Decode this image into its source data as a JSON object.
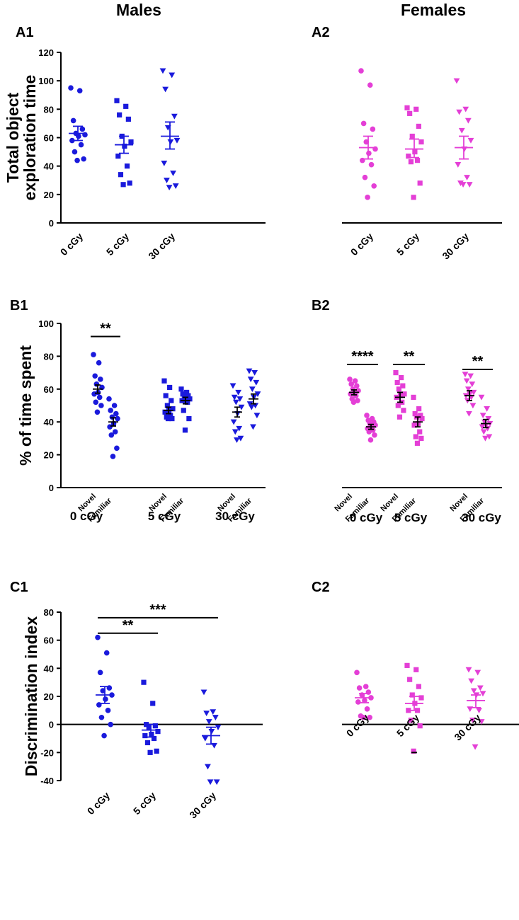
{
  "figure": {
    "col_males": "Males",
    "col_females": "Females",
    "colors": {
      "male": "#1a1adc",
      "female": "#e43fd6",
      "axis": "#000000",
      "black": "#000000"
    }
  },
  "chart_data": [
    {
      "id": "A1",
      "panel_label": "A1",
      "type": "scatter",
      "ylabel_line1": "Total object",
      "ylabel_line2": "exploration time",
      "ylim": [
        0,
        120
      ],
      "yticks": [
        "0",
        "20",
        "40",
        "60",
        "80",
        "100",
        "120"
      ],
      "categories": [
        "0 cGy",
        "5 cGy",
        "30 cGy"
      ],
      "groups": [
        {
          "category": "0 cGy",
          "marker": "circle",
          "mean": 63,
          "sem_low": 58,
          "sem_high": 68,
          "points": [
            95,
            93,
            72,
            66,
            63,
            62,
            61,
            58,
            55,
            50,
            45,
            44
          ]
        },
        {
          "category": "5 cGy",
          "marker": "square",
          "mean": 55,
          "sem_low": 49,
          "sem_high": 61,
          "points": [
            86,
            82,
            76,
            73,
            61,
            57,
            54,
            47,
            40,
            34,
            28,
            27
          ]
        },
        {
          "category": "30 cGy",
          "marker": "triangle-down",
          "mean": 61,
          "sem_low": 52,
          "sem_high": 71,
          "points": [
            107,
            104,
            94,
            75,
            67,
            58,
            57,
            42,
            35,
            30,
            26,
            25
          ]
        }
      ]
    },
    {
      "id": "A2",
      "panel_label": "A2",
      "type": "scatter",
      "ylim": [
        0,
        120
      ],
      "categories": [
        "0 cGy",
        "5 cGy",
        "30 cGy"
      ],
      "groups": [
        {
          "category": "0 cGy",
          "marker": "circle",
          "mean": 53,
          "sem_low": 45,
          "sem_high": 61,
          "points": [
            107,
            97,
            70,
            66,
            57,
            52,
            49,
            44,
            41,
            32,
            26,
            18
          ]
        },
        {
          "category": "5 cGy",
          "marker": "square",
          "mean": 52,
          "sem_low": 46,
          "sem_high": 59,
          "points": [
            81,
            80,
            77,
            68,
            61,
            57,
            50,
            47,
            44,
            43,
            28,
            18
          ]
        },
        {
          "category": "30 cGy",
          "marker": "triangle-down",
          "mean": 53,
          "sem_low": 45,
          "sem_high": 61,
          "points": [
            100,
            80,
            78,
            72,
            65,
            58,
            52,
            41,
            32,
            28,
            27,
            27
          ]
        }
      ]
    },
    {
      "id": "B1",
      "panel_label": "B1",
      "type": "scatter",
      "ylabel": "% of time spent",
      "ylim": [
        0,
        100
      ],
      "yticks": [
        "0",
        "20",
        "40",
        "60",
        "80",
        "100"
      ],
      "sublabels": [
        "Novel",
        "Familiar"
      ],
      "categories": [
        "0 cGy",
        "5 cGy",
        "30 cGy"
      ],
      "groups": [
        {
          "category": "0 cGy",
          "sub": "Novel",
          "marker": "circle",
          "mean": 60,
          "sem_low": 57.5,
          "sem_high": 62.5,
          "points": [
            81,
            76,
            68,
            66,
            63,
            61,
            58,
            57,
            55,
            52,
            50,
            46
          ]
        },
        {
          "category": "0 cGy",
          "sub": "Familiar",
          "marker": "circle",
          "mean": 40,
          "sem_low": 37.5,
          "sem_high": 42.5,
          "points": [
            54,
            50,
            47,
            45,
            43,
            42,
            39,
            37,
            34,
            32,
            24,
            19
          ]
        },
        {
          "category": "5 cGy",
          "sub": "Novel",
          "marker": "square",
          "mean": 47,
          "sem_low": 45,
          "sem_high": 49,
          "points": [
            65,
            61,
            56,
            53,
            50,
            48,
            47,
            46,
            44,
            43,
            42,
            42
          ]
        },
        {
          "category": "5 cGy",
          "sub": "Familiar",
          "marker": "square",
          "mean": 53,
          "sem_low": 51,
          "sem_high": 55,
          "points": [
            60,
            58,
            57,
            56,
            55,
            54,
            53,
            53,
            52,
            47,
            42,
            35
          ]
        },
        {
          "category": "30 cGy",
          "sub": "Novel",
          "marker": "triangle-down",
          "mean": 46,
          "sem_low": 43,
          "sem_high": 49,
          "points": [
            62,
            58,
            55,
            54,
            52,
            49,
            45,
            40,
            36,
            34,
            30,
            29
          ]
        },
        {
          "category": "30 cGy",
          "sub": "Familiar",
          "marker": "triangle-down",
          "mean": 54,
          "sem_low": 51,
          "sem_high": 57,
          "points": [
            71,
            70,
            66,
            64,
            60,
            57,
            55,
            51,
            50,
            49,
            44,
            37
          ]
        }
      ],
      "significance": [
        {
          "label": "**",
          "from": 0,
          "to": 1,
          "y": 92
        }
      ]
    },
    {
      "id": "B2",
      "panel_label": "B2",
      "type": "scatter",
      "ylim": [
        0,
        100
      ],
      "sublabels": [
        "Novel",
        "Familiar"
      ],
      "categories": [
        "0 cGy",
        "5 cGy",
        "30 cGy"
      ],
      "groups": [
        {
          "category": "0 cGy",
          "sub": "Novel",
          "marker": "circle",
          "mean": 58,
          "sem_low": 56.5,
          "sem_high": 59.5,
          "points": [
            66,
            65,
            63,
            62,
            60,
            59,
            58,
            57,
            56,
            54,
            53,
            52
          ]
        },
        {
          "category": "0 cGy",
          "sub": "Familiar",
          "marker": "circle",
          "mean": 37,
          "sem_low": 35.5,
          "sem_high": 38.5,
          "points": [
            44,
            42,
            41,
            40,
            39,
            38,
            37,
            36,
            35,
            34,
            32,
            29
          ]
        },
        {
          "category": "5 cGy",
          "sub": "Novel",
          "marker": "square",
          "mean": 55,
          "sem_low": 52,
          "sem_high": 58,
          "points": [
            70,
            67,
            64,
            62,
            60,
            57,
            56,
            55,
            52,
            50,
            47,
            43
          ]
        },
        {
          "category": "5 cGy",
          "sub": "Familiar",
          "marker": "square",
          "mean": 40,
          "sem_low": 37,
          "sem_high": 43,
          "points": [
            55,
            48,
            45,
            44,
            43,
            42,
            39,
            38,
            34,
            31,
            30,
            27
          ]
        },
        {
          "category": "30 cGy",
          "sub": "Novel",
          "marker": "triangle-down",
          "mean": 56,
          "sem_low": 53,
          "sem_high": 59,
          "points": [
            69,
            68,
            65,
            63,
            60,
            58,
            57,
            56,
            55,
            53,
            50,
            45
          ]
        },
        {
          "category": "30 cGy",
          "sub": "Familiar",
          "marker": "triangle-down",
          "mean": 39,
          "sem_low": 36.5,
          "sem_high": 41.5,
          "points": [
            55,
            48,
            44,
            42,
            40,
            39,
            38,
            37,
            36,
            34,
            31,
            30
          ]
        }
      ],
      "significance": [
        {
          "label": "****",
          "from": 0,
          "to": 1,
          "y": 75
        },
        {
          "label": "**",
          "from": 2,
          "to": 3,
          "y": 75
        },
        {
          "label": "**",
          "from": 4,
          "to": 5,
          "y": 72
        }
      ]
    },
    {
      "id": "C1",
      "panel_label": "C1",
      "type": "scatter",
      "ylabel": "Discrimination index",
      "ylim": [
        -40,
        80
      ],
      "yticks": [
        "-40",
        "-20",
        "0",
        "20",
        "40",
        "60",
        "80"
      ],
      "categories": [
        "0 cGy",
        "5 cGy",
        "30 cGy"
      ],
      "groups": [
        {
          "category": "0 cGy",
          "marker": "circle",
          "mean": 21,
          "sem_low": 15,
          "sem_high": 27,
          "points": [
            62,
            51,
            37,
            26,
            24,
            21,
            18,
            14,
            10,
            5,
            0,
            -8
          ]
        },
        {
          "category": "5 cGy",
          "marker": "square",
          "mean": -4,
          "sem_low": -9,
          "sem_high": 0,
          "points": [
            30,
            15,
            0,
            -1,
            -2,
            -5,
            -7,
            -8,
            -10,
            -13,
            -19,
            -20
          ]
        },
        {
          "category": "30 cGy",
          "marker": "triangle-down",
          "mean": -8,
          "sem_low": -14,
          "sem_high": -2,
          "points": [
            23,
            9,
            8,
            5,
            2,
            -2,
            -5,
            -10,
            -15,
            -30,
            -41,
            -41
          ]
        }
      ],
      "significance": [
        {
          "label": "**",
          "from": 0,
          "to": 1,
          "y": 65
        },
        {
          "label": "***",
          "from": 0,
          "to": 2,
          "y": 76
        }
      ]
    },
    {
      "id": "C2",
      "panel_label": "C2",
      "type": "scatter",
      "ylim": [
        -40,
        80
      ],
      "categories": [
        "0 cGy",
        "5 cGy",
        "30 cGy"
      ],
      "groups": [
        {
          "category": "0 cGy",
          "marker": "circle",
          "mean": 19,
          "sem_low": 15.5,
          "sem_high": 22,
          "points": [
            37,
            27,
            26,
            23,
            21,
            19,
            17,
            16,
            11,
            6,
            5,
            5
          ]
        },
        {
          "category": "5 cGy",
          "marker": "square",
          "mean": 15,
          "sem_low": 10,
          "sem_high": 20,
          "points": [
            42,
            39,
            32,
            27,
            21,
            19,
            15,
            10,
            10,
            3,
            -1,
            -19
          ]
        },
        {
          "category": "30 cGy",
          "marker": "triangle-down",
          "mean": 17,
          "sem_low": 12,
          "sem_high": 21,
          "points": [
            39,
            37,
            31,
            26,
            24,
            22,
            21,
            11,
            10,
            3,
            2,
            -16
          ]
        }
      ],
      "extra_marks": [
        {
          "type": "dash",
          "group": 1,
          "value": -20
        }
      ]
    }
  ]
}
